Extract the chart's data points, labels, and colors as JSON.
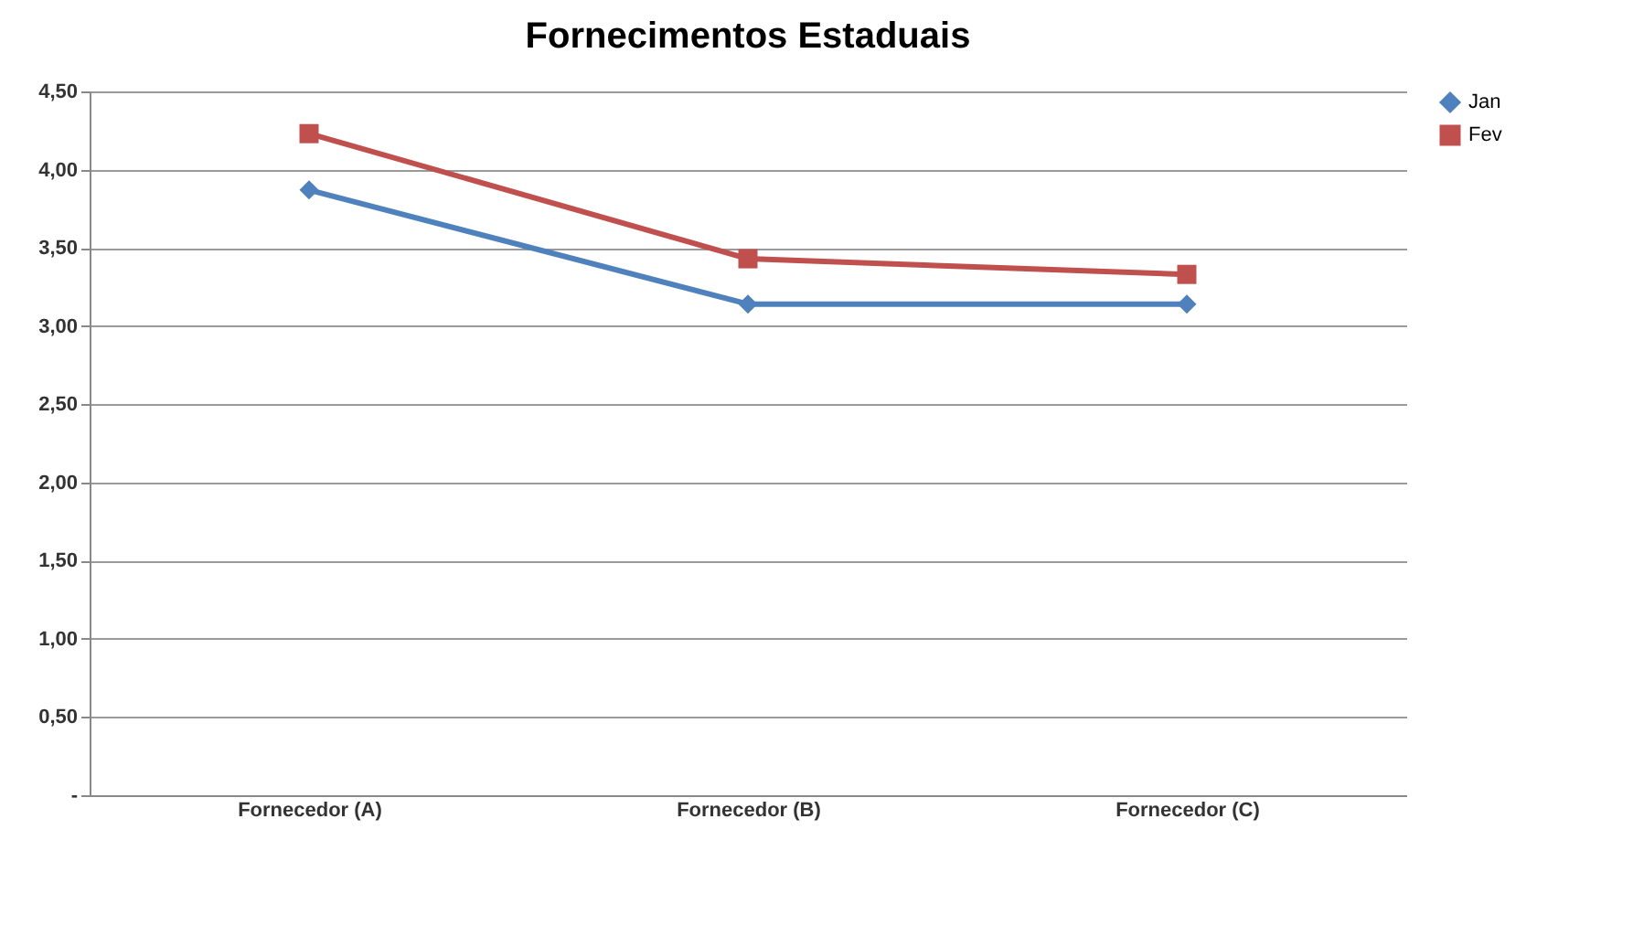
{
  "chart_data": {
    "type": "line",
    "title": "Fornecimentos Estaduais",
    "categories": [
      "Fornecedor (A)",
      "Fornecedor (B)",
      "Fornecedor (C)"
    ],
    "series": [
      {
        "name": "Jan",
        "color": "#4f81bd",
        "marker": "diamond",
        "values": [
          3.87,
          3.14,
          3.14
        ]
      },
      {
        "name": "Fev",
        "color": "#c0504d",
        "marker": "square",
        "values": [
          4.23,
          3.43,
          3.33
        ]
      }
    ],
    "ylim": [
      0,
      4.5
    ],
    "yticks": [
      {
        "value": 0,
        "label": "-"
      },
      {
        "value": 0.5,
        "label": "0,50"
      },
      {
        "value": 1,
        "label": "1,00"
      },
      {
        "value": 1.5,
        "label": "1,50"
      },
      {
        "value": 2,
        "label": "2,00"
      },
      {
        "value": 2.5,
        "label": "2,50"
      },
      {
        "value": 3,
        "label": "3,00"
      },
      {
        "value": 3.5,
        "label": "3,50"
      },
      {
        "value": 4,
        "label": "4,00"
      },
      {
        "value": 4.5,
        "label": "4,50"
      }
    ],
    "grid": "y",
    "legend": "right",
    "line_style": "solid"
  }
}
